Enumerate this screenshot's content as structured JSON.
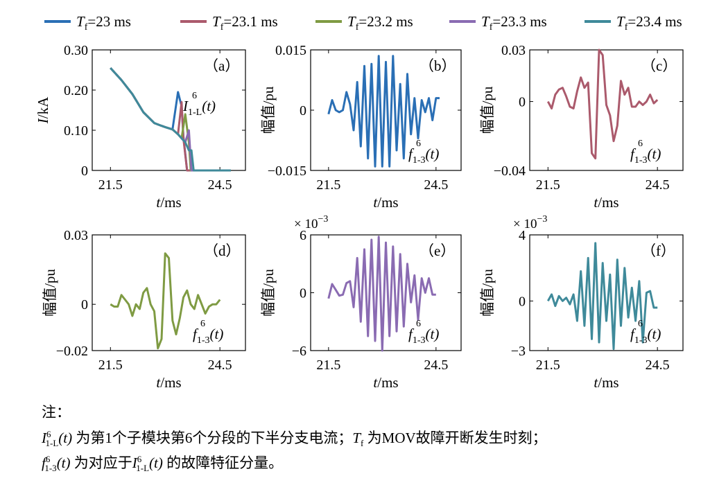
{
  "legend": [
    {
      "name": "=23 ms",
      "color": "#2a6fb5"
    },
    {
      "name": "=23.1 ms",
      "color": "#ab5a6c"
    },
    {
      "name": "=23.2 ms",
      "color": "#7f9b43"
    },
    {
      "name": "=23.3 ms",
      "color": "#8a6bb2"
    },
    {
      "name": "=23.4 ms",
      "color": "#3f8a9a"
    }
  ],
  "legend_symbol": "T",
  "legend_subscript": "f",
  "chart_data": [
    {
      "id": "a",
      "panel_label": "（a）",
      "type": "line",
      "xlabel": "t/ms",
      "ylabel": "I/kA",
      "xticks": [
        21.5,
        24.5
      ],
      "ytick_labels": [
        "0.30",
        "0.20",
        "0.10",
        "0"
      ],
      "yticks": [
        0.3,
        0.2,
        0.1,
        0
      ],
      "xlim": [
        21.0,
        25.2
      ],
      "ylim": [
        0,
        0.3
      ],
      "annotation": "I^6_1-L(t)",
      "series": [
        {
          "color": "#2a6fb5",
          "x": [
            21.5,
            21.8,
            22.1,
            22.4,
            22.7,
            22.9,
            23.0,
            23.2,
            23.35,
            23.45,
            23.5,
            23.6,
            23.9,
            24.2,
            24.5,
            24.8
          ],
          "y": [
            0.255,
            0.225,
            0.19,
            0.145,
            0.118,
            0.111,
            0.108,
            0.102,
            0.195,
            0.16,
            0.085,
            0,
            0,
            0,
            0,
            0
          ]
        },
        {
          "color": "#ab5a6c",
          "x": [
            21.5,
            21.8,
            22.1,
            22.4,
            22.7,
            22.9,
            23.0,
            23.2,
            23.35,
            23.45,
            23.5,
            23.6,
            23.9,
            24.2,
            24.5,
            24.8
          ],
          "y": [
            0.255,
            0.225,
            0.19,
            0.145,
            0.118,
            0.111,
            0.108,
            0.102,
            0.09,
            0.17,
            0.08,
            0,
            0,
            0,
            0,
            0
          ]
        },
        {
          "color": "#7f9b43",
          "x": [
            21.5,
            21.8,
            22.1,
            22.4,
            22.7,
            22.9,
            23.0,
            23.2,
            23.35,
            23.45,
            23.55,
            23.65,
            23.7,
            23.9,
            24.2,
            24.5,
            24.8
          ],
          "y": [
            0.255,
            0.225,
            0.19,
            0.145,
            0.118,
            0.111,
            0.108,
            0.102,
            0.09,
            0.08,
            0.14,
            0.07,
            0,
            0,
            0,
            0,
            0
          ]
        },
        {
          "color": "#8a6bb2",
          "x": [
            21.5,
            21.8,
            22.1,
            22.4,
            22.7,
            22.9,
            23.0,
            23.2,
            23.35,
            23.45,
            23.55,
            23.65,
            23.72,
            23.9,
            24.2,
            24.5,
            24.8
          ],
          "y": [
            0.255,
            0.225,
            0.19,
            0.145,
            0.118,
            0.111,
            0.108,
            0.102,
            0.09,
            0.08,
            0.07,
            0.1,
            0,
            0,
            0,
            0,
            0
          ]
        },
        {
          "color": "#3f8a9a",
          "x": [
            21.5,
            21.8,
            22.1,
            22.4,
            22.7,
            22.9,
            23.0,
            23.2,
            23.35,
            23.45,
            23.55,
            23.65,
            23.72,
            23.78,
            23.9,
            24.2,
            24.5,
            24.8
          ],
          "y": [
            0.255,
            0.225,
            0.19,
            0.145,
            0.118,
            0.111,
            0.108,
            0.102,
            0.09,
            0.08,
            0.07,
            0.05,
            0.05,
            0,
            0,
            0,
            0,
            0
          ]
        }
      ]
    },
    {
      "id": "b",
      "panel_label": "（b）",
      "type": "line",
      "xlabel": "t/ms",
      "ylabel": "幅值/pu",
      "xticks": [
        21.5,
        24.5
      ],
      "ytick_labels": [
        "0.015",
        "0",
        "−0.015"
      ],
      "yticks": [
        0.015,
        0,
        -0.015
      ],
      "xlim": [
        21.0,
        25.2
      ],
      "ylim": [
        -0.015,
        0.015
      ],
      "annotation": "f^6_1-3(t)",
      "series": [
        {
          "color": "#2a6fb5",
          "x": [
            21.5,
            21.6,
            21.7,
            21.8,
            21.9,
            22.0,
            22.1,
            22.2,
            22.3,
            22.4,
            22.5,
            22.6,
            22.7,
            22.8,
            22.9,
            23.0,
            23.1,
            23.2,
            23.3,
            23.4,
            23.5,
            23.6,
            23.7,
            23.8,
            23.9,
            24.0,
            24.1,
            24.2,
            24.3,
            24.4,
            24.5,
            24.6
          ],
          "y": [
            -0.001,
            0.0025,
            0.0,
            -0.0005,
            0.0,
            0.0045,
            0.0015,
            -0.005,
            0.007,
            -0.009,
            0.011,
            -0.012,
            0.0115,
            -0.014,
            0.0135,
            -0.014,
            0.012,
            -0.014,
            0.0135,
            -0.01,
            0.0065,
            -0.012,
            0.009,
            -0.006,
            0.003,
            -0.007,
            0.0025,
            -0.0005,
            0.003,
            -0.0025,
            0.003,
            0.003
          ]
        }
      ]
    },
    {
      "id": "c",
      "panel_label": "（c）",
      "type": "line",
      "xlabel": "t/ms",
      "ylabel": "幅值/pu",
      "xticks": [
        21.5,
        24.5
      ],
      "ytick_labels": [
        "0.03",
        "0",
        "−0.04"
      ],
      "yticks": [
        0.03,
        0,
        -0.04
      ],
      "xlim": [
        21.0,
        25.2
      ],
      "ylim": [
        -0.04,
        0.03
      ],
      "annotation": "f^6_1-3(t)",
      "series": [
        {
          "color": "#ab5a6c",
          "x": [
            21.5,
            21.6,
            21.7,
            21.8,
            21.9,
            22.0,
            22.1,
            22.2,
            22.3,
            22.4,
            22.5,
            22.6,
            22.7,
            22.8,
            22.9,
            23.0,
            23.1,
            23.2,
            23.3,
            23.4,
            23.5,
            23.6,
            23.7,
            23.8,
            23.9,
            24.0,
            24.1,
            24.2,
            24.3,
            24.4,
            24.5
          ],
          "y": [
            0.0,
            -0.004,
            0.004,
            0.007,
            0.008,
            0.003,
            -0.003,
            -0.004,
            0.006,
            0.014,
            0.008,
            0.011,
            -0.03,
            -0.033,
            0.03,
            0.027,
            -0.002,
            -0.008,
            -0.023,
            -0.014,
            0.012,
            0.004,
            0.008,
            -0.003,
            -0.003,
            0.0,
            -0.002,
            0.0,
            0.004,
            -0.001,
            0.001
          ]
        }
      ]
    },
    {
      "id": "d",
      "panel_label": "（d）",
      "type": "line",
      "xlabel": "t/ms",
      "ylabel": "幅值/pu",
      "xticks": [
        21.5,
        24.5
      ],
      "ytick_labels": [
        "0.03",
        "0",
        "−0.02"
      ],
      "yticks": [
        0.03,
        0,
        -0.02
      ],
      "xlim": [
        21.0,
        25.2
      ],
      "ylim": [
        -0.02,
        0.03
      ],
      "annotation": "f^6_1-3(t)",
      "series": [
        {
          "color": "#7f9b43",
          "x": [
            21.5,
            21.6,
            21.7,
            21.8,
            21.9,
            22.0,
            22.1,
            22.2,
            22.3,
            22.4,
            22.5,
            22.6,
            22.7,
            22.8,
            22.9,
            23.0,
            23.1,
            23.2,
            23.3,
            23.4,
            23.5,
            23.6,
            23.7,
            23.8,
            23.9,
            24.0,
            24.1,
            24.2,
            24.3,
            24.4,
            24.5
          ],
          "y": [
            0.0,
            -0.001,
            -0.001,
            0.004,
            0.002,
            0.0,
            -0.005,
            0.0,
            -0.002,
            0.005,
            0.007,
            0.0,
            -0.003,
            -0.019,
            -0.015,
            0.022,
            0.02,
            -0.007,
            -0.013,
            -0.006,
            0.003,
            0.006,
            0.0,
            -0.002,
            0.004,
            0.0,
            -0.004,
            -0.001,
            0.0,
            0.0,
            0.002
          ]
        }
      ]
    },
    {
      "id": "e",
      "panel_label": "（e）",
      "type": "line",
      "xlabel": "t/ms",
      "ylabel": "幅值/pu",
      "xticks": [
        21.5,
        24.5
      ],
      "ytick_labels": [
        "6",
        "0",
        "−6"
      ],
      "yticks": [
        6,
        0,
        -6
      ],
      "xlim": [
        21.0,
        25.2
      ],
      "ylim": [
        -6,
        6
      ],
      "scale_label": "× 10",
      "scale_exponent": "−3",
      "annotation": "f^6_1-3(t)",
      "series": [
        {
          "color": "#8a6bb2",
          "x": [
            21.5,
            21.6,
            21.7,
            21.8,
            21.9,
            22.0,
            22.1,
            22.2,
            22.3,
            22.4,
            22.5,
            22.6,
            22.7,
            22.8,
            22.9,
            23.0,
            23.1,
            23.2,
            23.3,
            23.4,
            23.5,
            23.6,
            23.7,
            23.8,
            23.9,
            24.0,
            24.1,
            24.2,
            24.3,
            24.4,
            24.5
          ],
          "y": [
            -0.6,
            0.9,
            0.3,
            -0.3,
            -0.2,
            1.0,
            1.2,
            -1.5,
            3.6,
            -3.0,
            4.5,
            -4.5,
            5.5,
            -5.0,
            5.8,
            -6.0,
            5.2,
            -4.5,
            4.8,
            -4.0,
            4.0,
            -3.5,
            3.0,
            -1.0,
            1.8,
            -2.8,
            1.5,
            0.0,
            1.5,
            -0.2,
            -0.2
          ]
        }
      ]
    },
    {
      "id": "f",
      "panel_label": "（f）",
      "type": "line",
      "xlabel": "t/ms",
      "ylabel": "幅值/pu",
      "xticks": [
        21.5,
        24.5
      ],
      "ytick_labels": [
        "4",
        "0",
        "−3"
      ],
      "yticks": [
        4,
        0,
        -3
      ],
      "xlim": [
        21.0,
        25.2
      ],
      "ylim": [
        -3,
        4
      ],
      "scale_label": "× 10",
      "scale_exponent": "−3",
      "annotation": "f^6_1-3(t)",
      "series": [
        {
          "color": "#3f8a9a",
          "x": [
            21.5,
            21.6,
            21.7,
            21.8,
            21.9,
            22.0,
            22.1,
            22.2,
            22.3,
            22.4,
            22.5,
            22.6,
            22.7,
            22.8,
            22.9,
            23.0,
            23.1,
            23.2,
            23.3,
            23.4,
            23.5,
            23.6,
            23.7,
            23.8,
            23.9,
            24.0,
            24.1,
            24.2,
            24.3,
            24.4,
            24.5
          ],
          "y": [
            0.0,
            0.4,
            -0.3,
            0.3,
            0.0,
            0.2,
            -0.2,
            0.4,
            -1.2,
            1.8,
            -1.5,
            2.6,
            -2.3,
            3.5,
            -2.5,
            2.3,
            -1.2,
            1.6,
            -2.9,
            2.5,
            -1.5,
            2.0,
            -1.0,
            0.8,
            -1.2,
            1.2,
            -2.5,
            0.5,
            0.6,
            -0.4,
            -0.4
          ]
        }
      ]
    }
  ],
  "notes": {
    "label": "注：",
    "line1_symbol": "I",
    "line1_sup": "6",
    "line1_sub": "1-L",
    "line1_arg": "(t)",
    "line1_text_a": " 为第1个子模块第6个分段的下半分支电流；",
    "line1_sym2": "T",
    "line1_sub2": "f",
    "line1_text_b": " 为MOV故障开断发生时刻；",
    "line2_symbol": "f",
    "line2_sup": "6",
    "line2_sub": "1-3",
    "line2_arg": "(t)",
    "line2_text_a": " 为对应于",
    "line2_text_b": " 的故障特征分量。"
  }
}
